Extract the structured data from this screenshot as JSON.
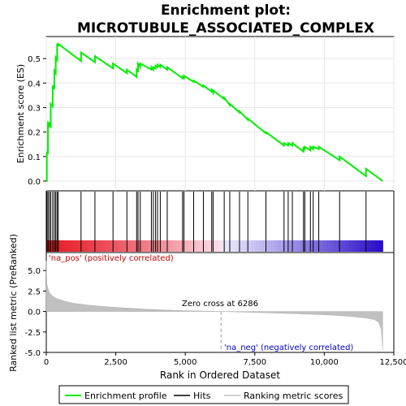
{
  "chart_data": {
    "type": "line",
    "title": "Enrichment plot:\nMICROTUBULE_ASSOCIATED_COMPLEX",
    "title_lines": [
      "Enrichment plot:",
      "MICROTUBULE_ASSOCIATED_COMPLEX"
    ],
    "xlabel": "Rank in Ordered Dataset",
    "xlim": [
      0,
      12500
    ],
    "x_ticks": [
      0,
      2500,
      5000,
      7500,
      10000,
      12500
    ],
    "x_tick_labels": [
      "0",
      "2,500",
      "5,000",
      "7,500",
      "10,000",
      "12,500"
    ],
    "panels": [
      {
        "name": "enrichment",
        "ylabel": "Enrichment score (ES)",
        "ylim": [
          -0.04,
          0.59
        ],
        "y_ticks": [
          0.0,
          0.1,
          0.2,
          0.3,
          0.4,
          0.5
        ],
        "y_tick_labels": [
          "0.0",
          "0.1",
          "0.2",
          "0.3",
          "0.4",
          "0.5"
        ],
        "color": "#00ee00"
      },
      {
        "name": "hits",
        "ylabel": "",
        "hit_positions": [
          20,
          60,
          110,
          160,
          230,
          290,
          340,
          390,
          430,
          1250,
          1750,
          2400,
          2900,
          3250,
          3300,
          3380,
          3780,
          3850,
          3930,
          4000,
          4100,
          4350,
          4900,
          4950,
          5300,
          5650,
          5950,
          6000,
          6400,
          6600,
          6950,
          7250,
          7900,
          8550,
          8700,
          8850,
          9250,
          9300,
          9500,
          9600,
          9800,
          10550,
          11500
        ]
      },
      {
        "name": "ranking",
        "ylabel": "Ranked list metric (PreRanked)",
        "ylim": [
          -5.0,
          7.2
        ],
        "y_ticks": [
          -5.0,
          -2.5,
          0.0,
          2.5,
          5.0
        ],
        "y_tick_labels": [
          "-5.0",
          "-2.5",
          "0.0",
          "2.5",
          "5.0"
        ],
        "zero_cross_label": "Zero cross at 6286",
        "zero_cross": 6286,
        "pos_label": "'na_pos' (positively correlated)",
        "neg_label": "'na_neg' (negatively correlated)",
        "pos_color": "#cc0000",
        "neg_color": "#0000cc"
      }
    ],
    "series": [
      {
        "name": "Enrichment profile",
        "x": [
          0,
          20,
          60,
          110,
          160,
          230,
          290,
          340,
          390,
          430,
          1250,
          1750,
          2400,
          2900,
          3250,
          3300,
          3380,
          3780,
          3850,
          3930,
          4000,
          4100,
          4350,
          4900,
          4950,
          5300,
          5650,
          5950,
          6000,
          6400,
          6600,
          6950,
          7250,
          7900,
          8550,
          8700,
          8850,
          9250,
          9300,
          9500,
          9600,
          9800,
          10550,
          11500,
          12100
        ],
        "y_before": [
          0.0,
          0.0,
          0.11,
          0.225,
          0.225,
          0.305,
          0.375,
          0.44,
          0.495,
          0.55,
          0.49,
          0.485,
          0.46,
          0.44,
          0.425,
          0.445,
          0.465,
          0.455,
          0.455,
          0.46,
          0.465,
          0.465,
          0.455,
          0.42,
          0.42,
          0.405,
          0.385,
          0.365,
          0.36,
          0.335,
          0.31,
          0.28,
          0.25,
          0.195,
          0.145,
          0.145,
          0.145,
          0.12,
          0.13,
          0.125,
          0.13,
          0.13,
          0.085,
          0.02,
          0.0
        ],
        "y": [
          0.0,
          0.12,
          0.235,
          0.235,
          0.315,
          0.39,
          0.45,
          0.505,
          0.56,
          0.56,
          0.525,
          0.51,
          0.48,
          0.455,
          0.46,
          0.48,
          0.48,
          0.465,
          0.465,
          0.47,
          0.475,
          0.475,
          0.465,
          0.425,
          0.43,
          0.41,
          0.39,
          0.37,
          0.37,
          0.34,
          0.315,
          0.285,
          0.255,
          0.2,
          0.155,
          0.155,
          0.155,
          0.135,
          0.14,
          0.14,
          0.14,
          0.14,
          0.1,
          0.05,
          0.0
        ],
        "color": "#00ee00"
      },
      {
        "name": "Ranking metric scores",
        "x": [
          0,
          20,
          60,
          100,
          150,
          200,
          300,
          400,
          500,
          700,
          1000,
          1500,
          2000,
          2500,
          3000,
          3500,
          4000,
          5000,
          6000,
          6286,
          7000,
          8000,
          9000,
          10000,
          10500,
          11000,
          11500,
          11800,
          11950,
          12050,
          12100
        ],
        "y": [
          6.2,
          3.4,
          2.8,
          2.4,
          2.15,
          1.95,
          1.7,
          1.55,
          1.42,
          1.22,
          1.0,
          0.78,
          0.62,
          0.5,
          0.4,
          0.3,
          0.22,
          0.1,
          0.02,
          0.0,
          -0.07,
          -0.17,
          -0.28,
          -0.4,
          -0.5,
          -0.62,
          -0.8,
          -1.0,
          -1.3,
          -2.2,
          -4.7
        ],
        "color": "#c0c0c0"
      },
      {
        "name": "Hits",
        "color": "#000000"
      }
    ],
    "legend": {
      "placement": "bottom",
      "items": [
        {
          "label": "Enrichment profile",
          "color": "#00ee00",
          "style": "line"
        },
        {
          "label": "Hits",
          "color": "#000000",
          "style": "line"
        },
        {
          "label": "Ranking metric scores",
          "color": "#c0c0c0",
          "style": "line"
        }
      ]
    }
  }
}
